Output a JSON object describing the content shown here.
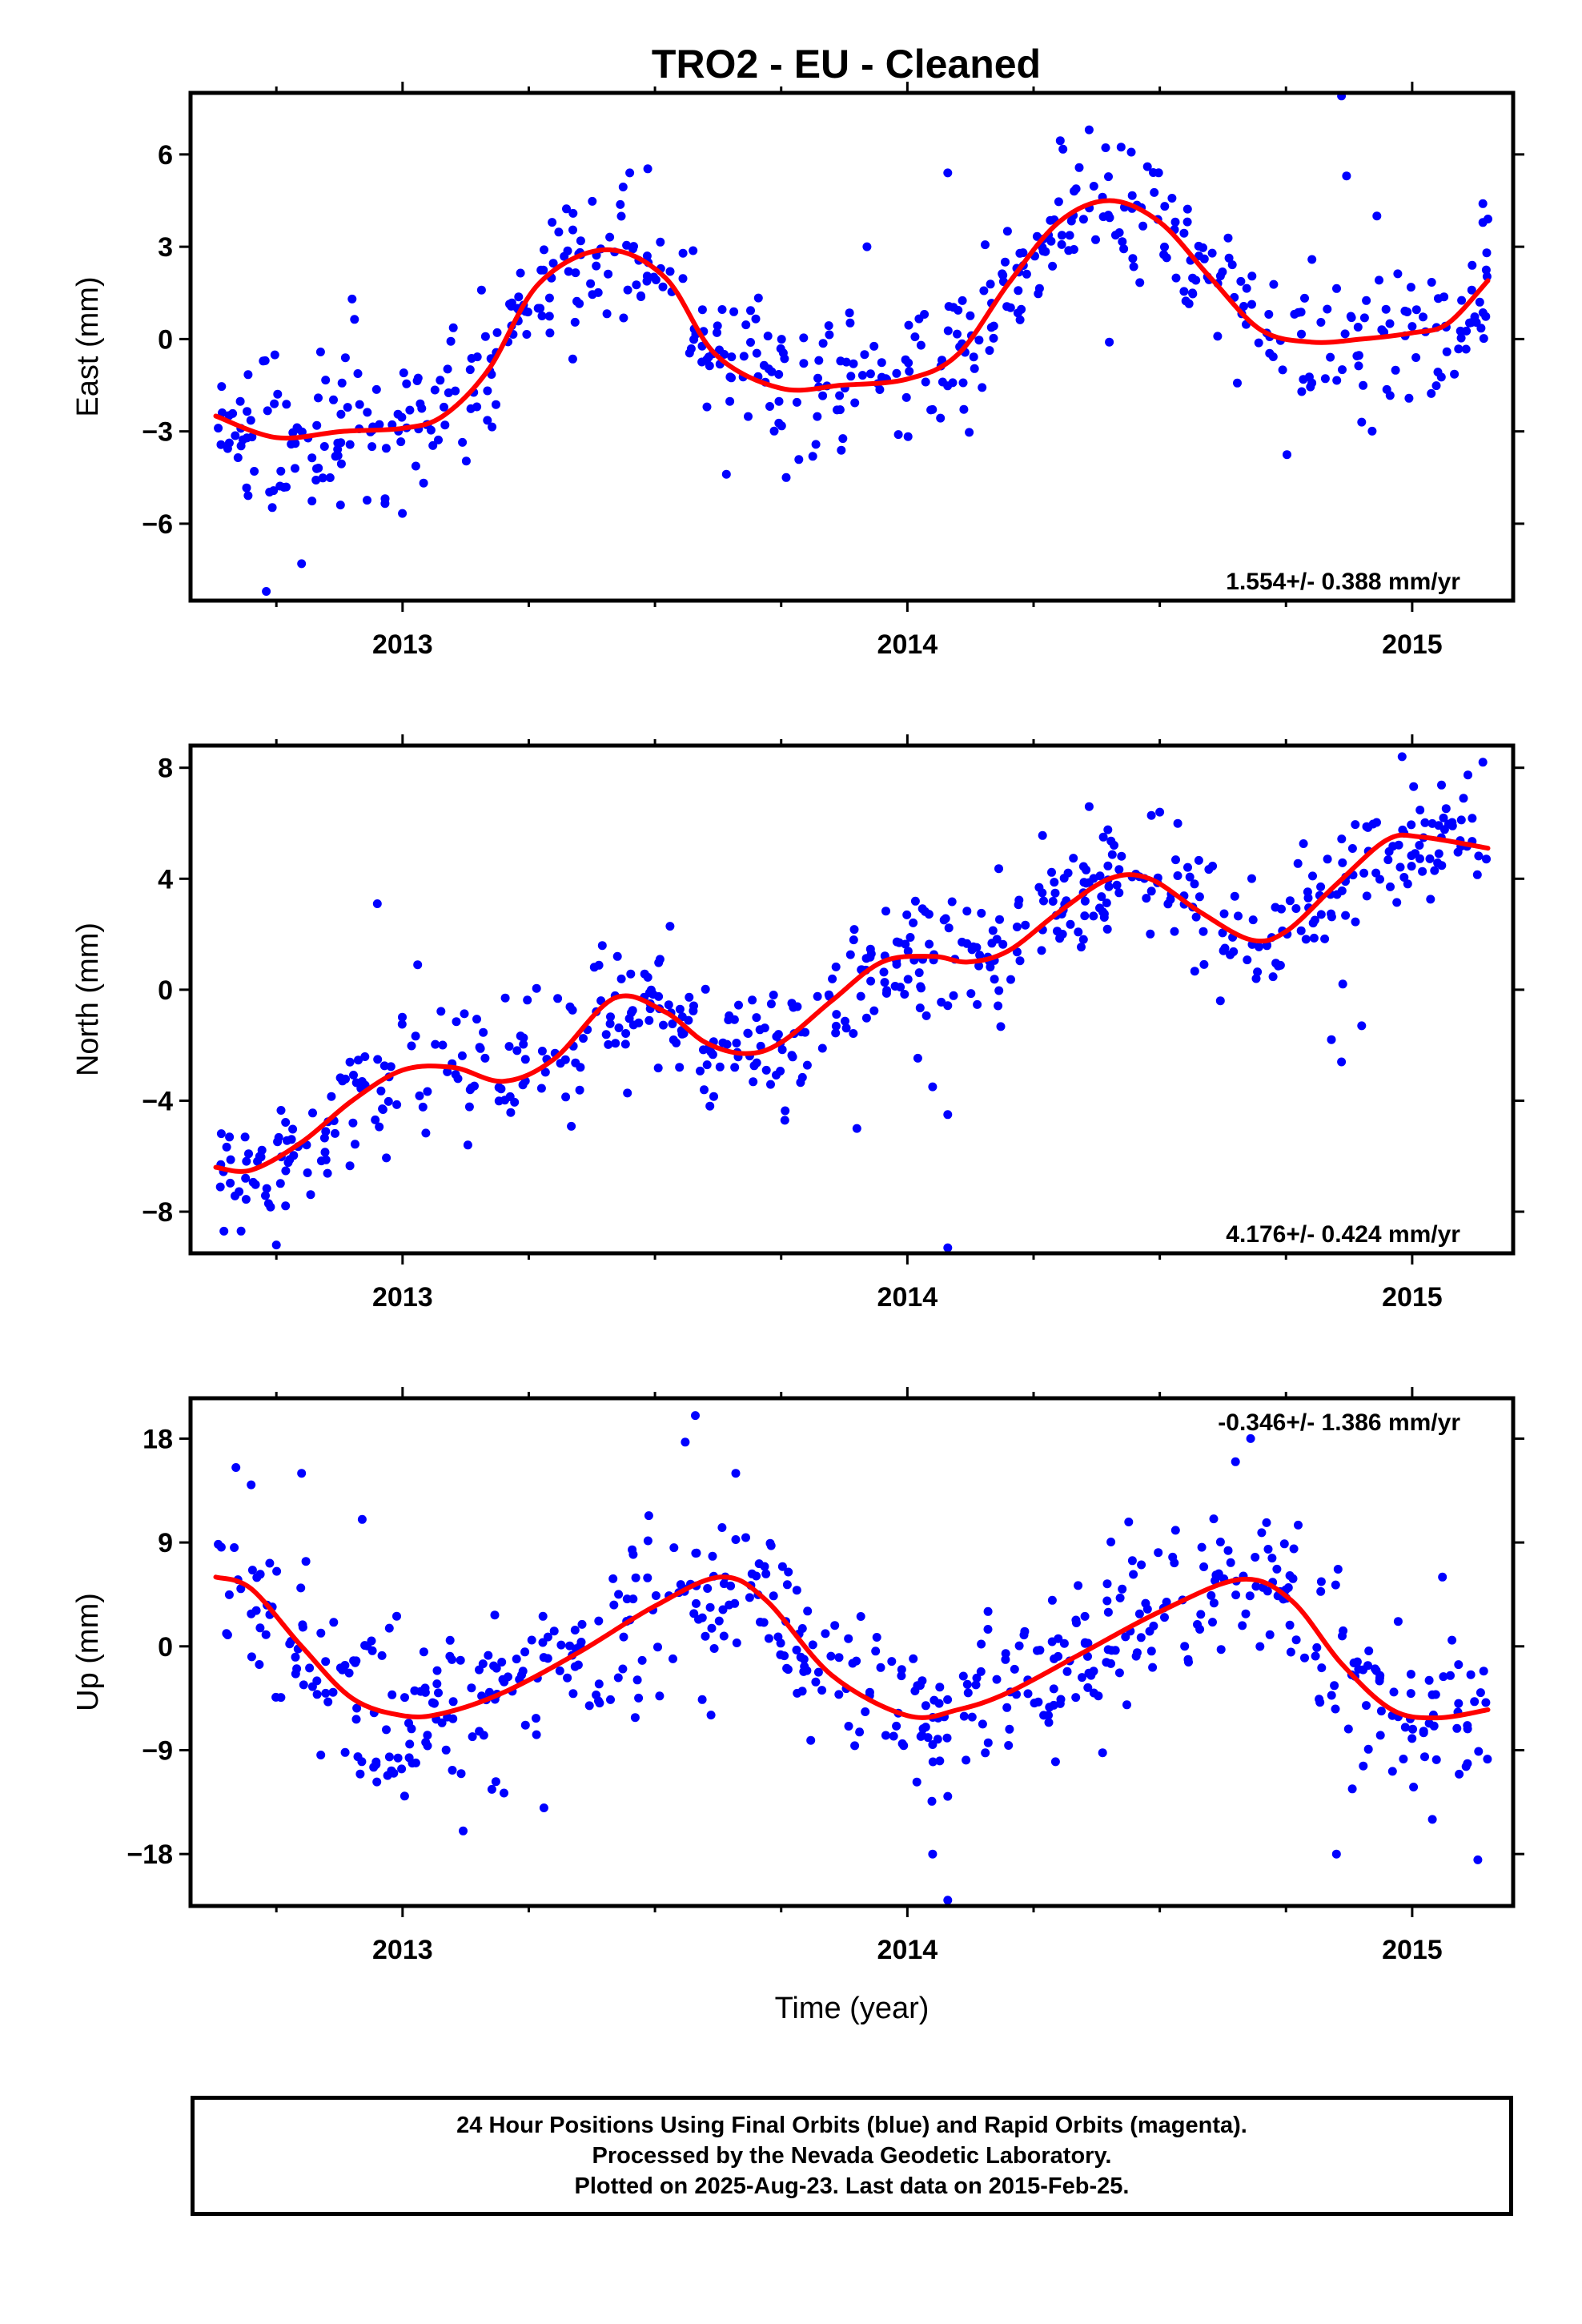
{
  "title": "TRO2  - EU - Cleaned",
  "chart_data": [
    {
      "type": "scatter",
      "ylabel": "East (mm)",
      "xlabel": "",
      "xlim": [
        2012.58,
        2015.2
      ],
      "ylim": [
        -8.5,
        8.0
      ],
      "yticks": [
        6,
        3,
        0,
        -3,
        -6
      ],
      "ytick_labels": [
        "6",
        "3",
        "0",
        "−3",
        "−6"
      ],
      "xticks": [
        2013,
        2014,
        2015
      ],
      "xtick_labels": [
        "2013",
        "2014",
        "2015"
      ],
      "rate_text": "1.554+/- 0.388 mm/yr",
      "rate_position": "bottom-right",
      "scatter_color": "#0000ff",
      "fit_color": "#ff0000",
      "fit": {
        "x": [
          2012.63,
          2012.75,
          2012.88,
          2013.0,
          2013.08,
          2013.17,
          2013.27,
          2013.4,
          2013.52,
          2013.62,
          2013.75,
          2013.87,
          2014.0,
          2014.1,
          2014.2,
          2014.3,
          2014.4,
          2014.5,
          2014.6,
          2014.7,
          2014.8,
          2014.9,
          2015.0,
          2015.07,
          2015.15
        ],
        "y": [
          -2.5,
          -3.2,
          -3.0,
          -2.9,
          -2.5,
          -1.0,
          1.8,
          2.9,
          2.0,
          -0.5,
          -1.6,
          -1.5,
          -1.3,
          -0.5,
          1.8,
          3.8,
          4.5,
          3.8,
          2.0,
          0.3,
          -0.1,
          0.0,
          0.2,
          0.5,
          1.9
        ]
      },
      "scatter": {
        "amplitude": 1.1,
        "outliers": [
          [
            2012.73,
            -8.2
          ],
          [
            2012.8,
            -7.3
          ],
          [
            2012.9,
            1.3
          ],
          [
            2013.45,
            5.4
          ],
          [
            2013.76,
            -4.5
          ],
          [
            2013.92,
            3.0
          ],
          [
            2014.08,
            5.4
          ],
          [
            2014.36,
            6.8
          ],
          [
            2014.4,
            -0.1
          ],
          [
            2014.86,
            7.9
          ],
          [
            2014.87,
            5.3
          ],
          [
            2014.9,
            -2.7
          ],
          [
            2014.93,
            4.0
          ],
          [
            2015.14,
            4.4
          ],
          [
            2015.15,
            3.9
          ]
        ]
      }
    },
    {
      "type": "scatter",
      "ylabel": "North (mm)",
      "xlabel": "",
      "xlim": [
        2012.58,
        2015.2
      ],
      "ylim": [
        -9.5,
        8.8
      ],
      "yticks": [
        8,
        4,
        0,
        -4,
        -8
      ],
      "ytick_labels": [
        "8",
        "4",
        "0",
        "−4",
        "−8"
      ],
      "xticks": [
        2013,
        2014,
        2015
      ],
      "xtick_labels": [
        "2013",
        "2014",
        "2015"
      ],
      "rate_text": "4.176+/- 0.424 mm/yr",
      "rate_position": "bottom-right",
      "scatter_color": "#0000ff",
      "fit_color": "#ff0000",
      "fit": {
        "x": [
          2012.63,
          2012.7,
          2012.8,
          2012.9,
          2013.0,
          2013.1,
          2013.2,
          2013.3,
          2013.42,
          2013.52,
          2013.6,
          2013.68,
          2013.75,
          2013.85,
          2013.95,
          2014.05,
          2014.12,
          2014.2,
          2014.3,
          2014.4,
          2014.48,
          2014.58,
          2014.68,
          2014.75,
          2014.85,
          2014.95,
          2015.02,
          2015.15
        ],
        "y": [
          -6.4,
          -6.5,
          -5.5,
          -4.0,
          -2.9,
          -2.8,
          -3.3,
          -2.5,
          -0.3,
          -0.8,
          -1.9,
          -2.3,
          -1.9,
          -0.4,
          1.0,
          1.2,
          1.0,
          1.4,
          2.8,
          4.0,
          4.0,
          2.8,
          1.8,
          2.1,
          3.8,
          5.4,
          5.5,
          5.1
        ]
      },
      "scatter": {
        "amplitude": 1.2,
        "outliers": [
          [
            2012.68,
            -8.7
          ],
          [
            2012.75,
            -9.2
          ],
          [
            2012.95,
            3.1
          ],
          [
            2013.03,
            0.9
          ],
          [
            2013.9,
            -5.0
          ],
          [
            2014.05,
            -3.5
          ],
          [
            2014.08,
            -9.3
          ],
          [
            2014.08,
            -4.5
          ],
          [
            2014.36,
            6.6
          ],
          [
            2014.5,
            6.4
          ],
          [
            2014.62,
            -0.4
          ],
          [
            2014.84,
            -1.8
          ],
          [
            2014.86,
            -2.6
          ],
          [
            2014.9,
            -1.3
          ],
          [
            2014.98,
            8.4
          ],
          [
            2015.14,
            8.2
          ]
        ]
      }
    },
    {
      "type": "scatter",
      "ylabel": "Up (mm)",
      "xlabel": "Time (year)",
      "xlim": [
        2012.58,
        2015.2
      ],
      "ylim": [
        -22.5,
        21.5
      ],
      "yticks": [
        18,
        9,
        0,
        -9,
        -18
      ],
      "ytick_labels": [
        "18",
        "9",
        "0",
        "−9",
        "−18"
      ],
      "xticks": [
        2013,
        2014,
        2015
      ],
      "xtick_labels": [
        "2013",
        "2014",
        "2015"
      ],
      "rate_text": "-0.346+/- 1.386 mm/yr",
      "rate_position": "top-right",
      "scatter_color": "#0000ff",
      "fit_color": "#ff0000",
      "fit": {
        "x": [
          2012.63,
          2012.7,
          2012.8,
          2012.9,
          2013.0,
          2013.08,
          2013.2,
          2013.35,
          2013.5,
          2013.63,
          2013.72,
          2013.85,
          2014.0,
          2014.1,
          2014.2,
          2014.35,
          2014.5,
          2014.66,
          2014.76,
          2014.86,
          2014.96,
          2015.05,
          2015.15
        ],
        "y": [
          6.0,
          5.0,
          0.0,
          -4.5,
          -6.0,
          -5.8,
          -4.0,
          -0.5,
          3.5,
          6.0,
          4.0,
          -2.5,
          -6.0,
          -5.5,
          -4.0,
          -0.5,
          3.0,
          5.8,
          4.0,
          -1.5,
          -5.5,
          -6.2,
          -5.5
        ]
      },
      "scatter": {
        "amplitude": 3.5,
        "outliers": [
          [
            2012.67,
            15.5
          ],
          [
            2012.7,
            14.0
          ],
          [
            2012.8,
            15.0
          ],
          [
            2012.92,
            11.0
          ],
          [
            2013.12,
            -16.0
          ],
          [
            2013.28,
            -14.0
          ],
          [
            2013.58,
            20.0
          ],
          [
            2013.56,
            17.7
          ],
          [
            2013.66,
            15.0
          ],
          [
            2014.05,
            -18.0
          ],
          [
            2014.08,
            -22.0
          ],
          [
            2014.08,
            -13.0
          ],
          [
            2014.65,
            16.0
          ],
          [
            2014.68,
            18.0
          ],
          [
            2014.85,
            -18.0
          ],
          [
            2015.04,
            -15.0
          ],
          [
            2015.13,
            -18.5
          ],
          [
            2015.06,
            6.0
          ]
        ]
      }
    }
  ],
  "footer": {
    "line1": "24 Hour Positions Using Final Orbits (blue) and Rapid Orbits (magenta).",
    "line2": "Processed by the Nevada Geodetic Laboratory.",
    "line3": "Plotted on 2025-Aug-23. Last data on 2015-Feb-25."
  }
}
